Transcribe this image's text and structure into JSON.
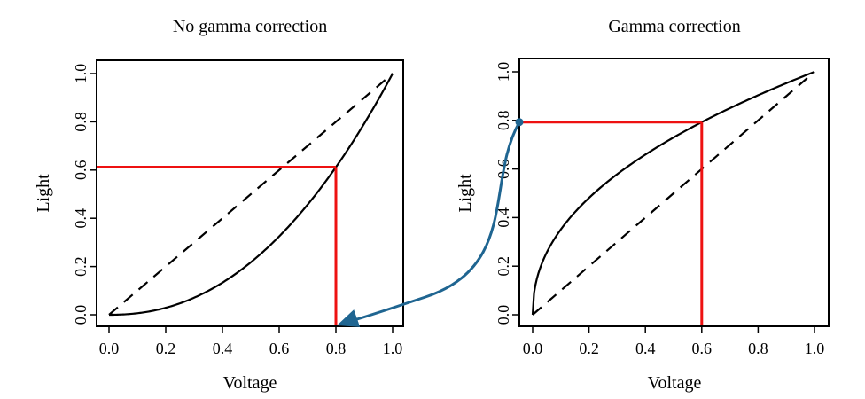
{
  "chart_data": [
    {
      "type": "line",
      "title": "No gamma correction",
      "xlabel": "Voltage",
      "ylabel": "Light",
      "xlim": [
        0,
        1
      ],
      "ylim": [
        0,
        1
      ],
      "x_ticks": [
        "0.0",
        "0.2",
        "0.4",
        "0.6",
        "0.8",
        "1.0"
      ],
      "y_ticks": [
        "0.0",
        "0.2",
        "0.4",
        "0.6",
        "0.8",
        "1.0"
      ],
      "grid": false,
      "series": [
        {
          "style": "solid",
          "color": "#000000",
          "function": "power",
          "gamma": 2.2,
          "x": [
            0,
            0.1,
            0.2,
            0.3,
            0.4,
            0.5,
            0.6,
            0.7,
            0.8,
            0.9,
            1.0
          ],
          "y": [
            0,
            0.006,
            0.029,
            0.071,
            0.133,
            0.218,
            0.325,
            0.456,
            0.612,
            0.793,
            1.0
          ]
        },
        {
          "style": "dashed",
          "color": "#000000",
          "x": [
            0,
            1
          ],
          "y": [
            0,
            1
          ]
        }
      ],
      "annotations": [
        {
          "type": "guide",
          "color": "#ee1111",
          "x": 0.8,
          "y": 0.612
        }
      ]
    },
    {
      "type": "line",
      "title": "Gamma correction",
      "xlabel": "Voltage",
      "ylabel": "Light",
      "xlim": [
        0,
        1
      ],
      "ylim": [
        0,
        1
      ],
      "x_ticks": [
        "0.0",
        "0.2",
        "0.4",
        "0.6",
        "0.8",
        "1.0"
      ],
      "y_ticks": [
        "0.0",
        "0.2",
        "0.4",
        "0.6",
        "0.8",
        "1.0"
      ],
      "grid": false,
      "series": [
        {
          "style": "solid",
          "color": "#000000",
          "function": "power",
          "gamma": 0.4545,
          "x": [
            0,
            0.1,
            0.2,
            0.3,
            0.4,
            0.5,
            0.6,
            0.7,
            0.8,
            0.9,
            1.0
          ],
          "y": [
            0,
            0.351,
            0.481,
            0.579,
            0.659,
            0.73,
            0.793,
            0.85,
            0.904,
            0.953,
            1.0
          ]
        },
        {
          "style": "dashed",
          "color": "#000000",
          "x": [
            0,
            1
          ],
          "y": [
            0,
            1
          ]
        }
      ],
      "annotations": [
        {
          "type": "guide",
          "color": "#ee1111",
          "x": 0.6,
          "y": 0.793
        }
      ]
    }
  ],
  "connector": {
    "color": "#1f6591",
    "from": "left-y-axis-point",
    "to": "left-panel-x-0.8"
  }
}
